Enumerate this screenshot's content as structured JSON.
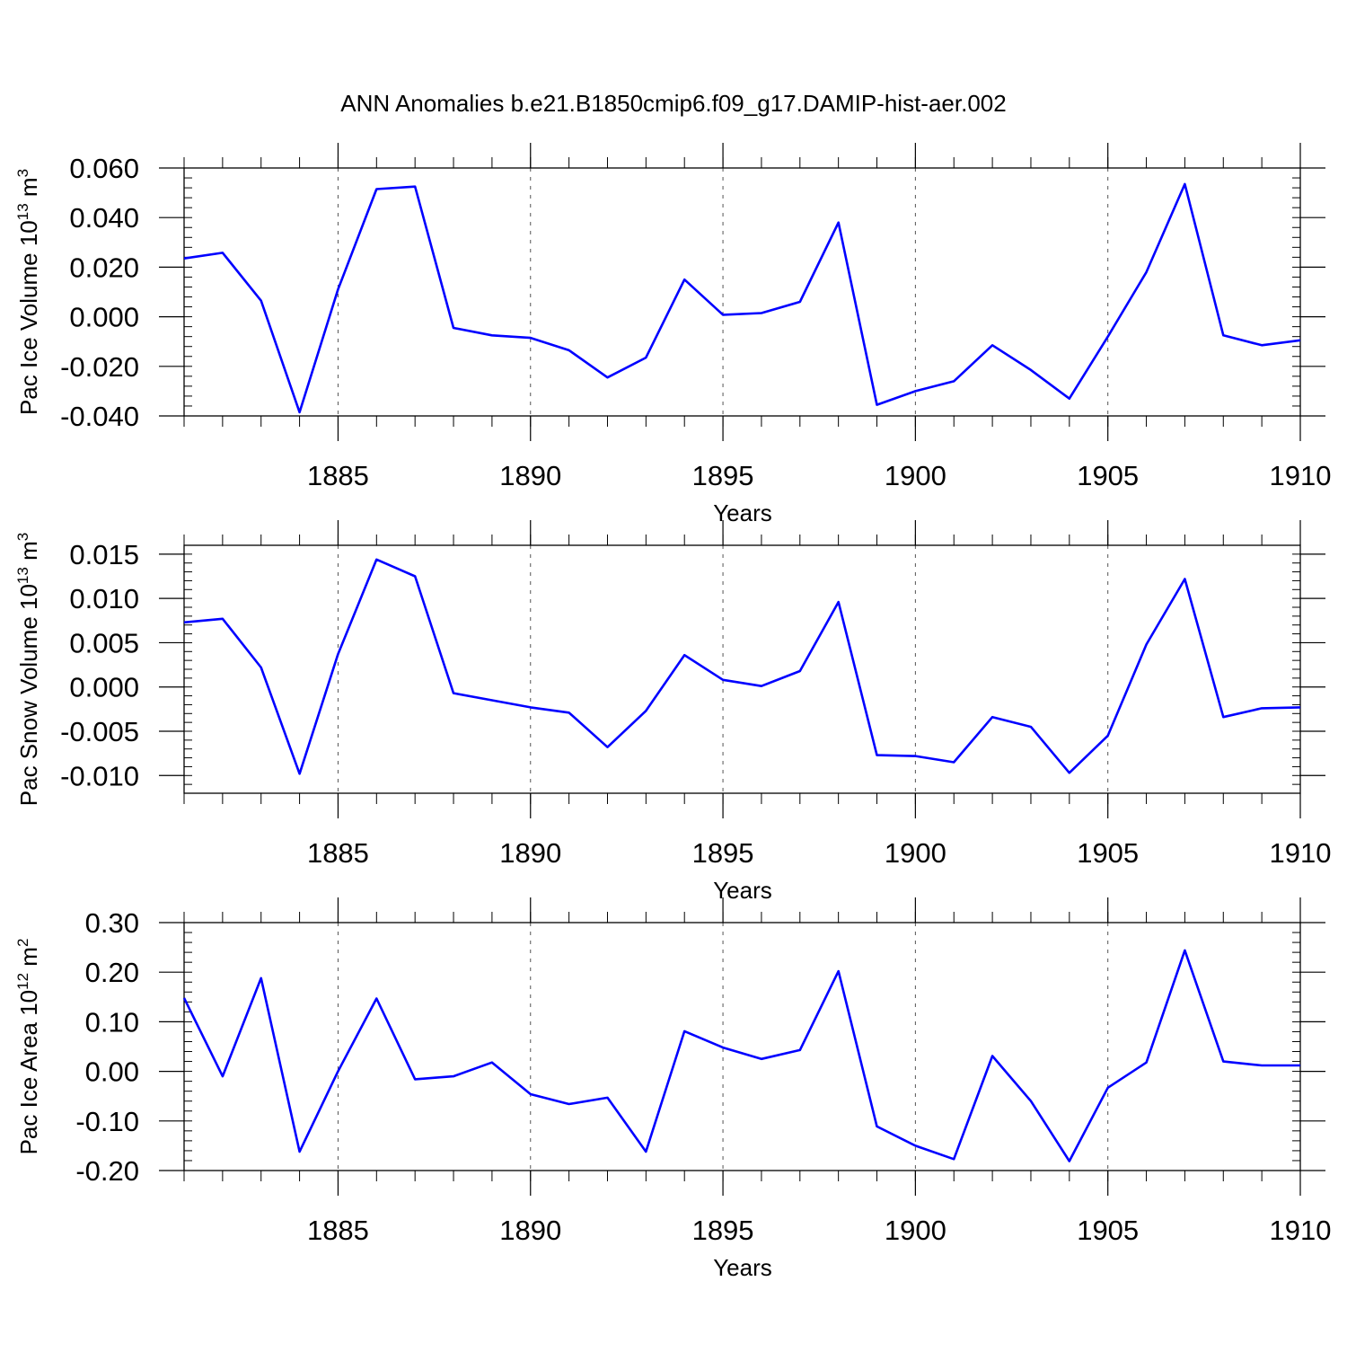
{
  "title": "ANN Anomalies b.e21.B1850cmip6.f09_g17.DAMIP-hist-aer.002",
  "colors": {
    "line": "#0000ff",
    "axis": "#000000",
    "grid": "#555555",
    "background": "#ffffff"
  },
  "chart_data": [
    {
      "type": "line",
      "ylabel": {
        "main": "Pac Ice Volume 10",
        "exp": "13",
        "unit": " m",
        "unit_exp": "3"
      },
      "xlabel": "Years",
      "xlim": [
        1881,
        1910
      ],
      "ylim": [
        -0.04,
        0.06
      ],
      "yticks": [
        -0.04,
        -0.02,
        0.0,
        0.02,
        0.04,
        0.06
      ],
      "ytick_labels": [
        "-0.040",
        "-0.020",
        "0.000",
        "0.020",
        "0.040",
        "0.060"
      ],
      "xticks": [
        1885,
        1890,
        1895,
        1900,
        1905,
        1910
      ],
      "xtick_labels": [
        "1885",
        "1890",
        "1895",
        "1900",
        "1905",
        "1910"
      ],
      "grid": "vertical dashed at labeled years",
      "x": [
        1881,
        1882,
        1883,
        1884,
        1885,
        1886,
        1887,
        1888,
        1889,
        1890,
        1891,
        1892,
        1893,
        1894,
        1895,
        1896,
        1897,
        1898,
        1899,
        1900,
        1901,
        1902,
        1903,
        1904,
        1905,
        1906,
        1907,
        1908,
        1909,
        1910
      ],
      "series": [
        {
          "values": [
            0.0235,
            0.0258,
            0.0065,
            -0.0385,
            0.011,
            0.0515,
            0.0525,
            -0.0045,
            -0.0075,
            -0.0085,
            -0.0135,
            -0.0245,
            -0.0165,
            0.015,
            0.0008,
            0.0015,
            0.006,
            0.038,
            -0.0355,
            -0.03,
            -0.026,
            -0.0115,
            -0.0215,
            -0.033,
            -0.008,
            0.018,
            0.0535,
            -0.0075,
            -0.0115,
            -0.0095
          ]
        }
      ]
    },
    {
      "type": "line",
      "ylabel": {
        "main": "Pac Snow Volume 10",
        "exp": "13",
        "unit": " m",
        "unit_exp": "3"
      },
      "xlabel": "Years",
      "xlim": [
        1881,
        1910
      ],
      "ylim": [
        -0.012,
        0.016
      ],
      "yticks": [
        -0.01,
        -0.005,
        0.0,
        0.005,
        0.01,
        0.015
      ],
      "ytick_labels": [
        "-0.010",
        "-0.005",
        "0.000",
        "0.005",
        "0.010",
        "0.015"
      ],
      "xticks": [
        1885,
        1890,
        1895,
        1900,
        1905,
        1910
      ],
      "xtick_labels": [
        "1885",
        "1890",
        "1895",
        "1900",
        "1905",
        "1910"
      ],
      "grid": "vertical dashed at labeled years",
      "x": [
        1881,
        1882,
        1883,
        1884,
        1885,
        1886,
        1887,
        1888,
        1889,
        1890,
        1891,
        1892,
        1893,
        1894,
        1895,
        1896,
        1897,
        1898,
        1899,
        1900,
        1901,
        1902,
        1903,
        1904,
        1905,
        1906,
        1907,
        1908,
        1909,
        1910
      ],
      "series": [
        {
          "values": [
            0.0073,
            0.0077,
            0.0022,
            -0.0098,
            0.0037,
            0.0144,
            0.0125,
            -0.0007,
            -0.0015,
            -0.0023,
            -0.0029,
            -0.0068,
            -0.0027,
            0.0036,
            0.0008,
            0.0001,
            0.0018,
            0.0096,
            -0.0077,
            -0.0078,
            -0.0085,
            -0.0034,
            -0.0045,
            -0.0097,
            -0.0055,
            0.0048,
            0.0122,
            -0.0034,
            -0.0024,
            -0.0023
          ]
        }
      ]
    },
    {
      "type": "line",
      "ylabel": {
        "main": "Pac Ice Area 10",
        "exp": "12",
        "unit": " m",
        "unit_exp": "2"
      },
      "xlabel": "Years",
      "xlim": [
        1881,
        1910
      ],
      "ylim": [
        -0.2,
        0.3
      ],
      "yticks": [
        -0.2,
        -0.1,
        0.0,
        0.1,
        0.2,
        0.3
      ],
      "ytick_labels": [
        "-0.20",
        "-0.10",
        "0.00",
        "0.10",
        "0.20",
        "0.30"
      ],
      "xticks": [
        1885,
        1890,
        1895,
        1900,
        1905,
        1910
      ],
      "xtick_labels": [
        "1885",
        "1890",
        "1895",
        "1900",
        "1905",
        "1910"
      ],
      "grid": "vertical dashed at labeled years",
      "x": [
        1881,
        1882,
        1883,
        1884,
        1885,
        1886,
        1887,
        1888,
        1889,
        1890,
        1891,
        1892,
        1893,
        1894,
        1895,
        1896,
        1897,
        1898,
        1899,
        1900,
        1901,
        1902,
        1903,
        1904,
        1905,
        1906,
        1907,
        1908,
        1909,
        1910
      ],
      "series": [
        {
          "values": [
            0.148,
            -0.01,
            0.188,
            -0.162,
            0.0,
            0.147,
            -0.016,
            -0.01,
            0.018,
            -0.046,
            -0.066,
            -0.053,
            -0.162,
            0.081,
            0.048,
            0.025,
            0.043,
            0.202,
            -0.111,
            -0.15,
            -0.177,
            0.031,
            -0.06,
            -0.181,
            -0.033,
            0.018,
            0.244,
            0.02,
            0.012,
            0.012
          ]
        }
      ]
    }
  ]
}
